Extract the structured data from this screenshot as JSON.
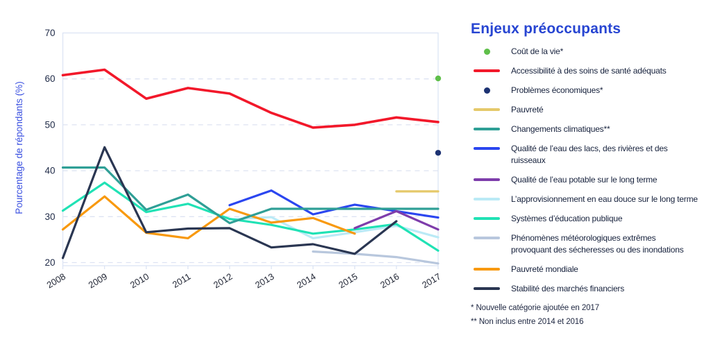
{
  "title": "Enjeux préoccupants",
  "title_color": "#2745d2",
  "footnotes": [
    "* Nouvelle catégorie ajoutée en 2017",
    "** Non inclus entre 2014 et 2016"
  ],
  "legend": {
    "items": [
      {
        "key": "cout-de-la-vie",
        "swatch": "dot",
        "color": "#5fbf4a",
        "label_lines": [
          "Coût de la vie*"
        ]
      },
      {
        "key": "accessibilite-soins-sante",
        "swatch": "line",
        "color": "#f2182a",
        "label_lines": [
          "Accessibilité à des soins de santé adéquats"
        ]
      },
      {
        "key": "problemes-economiques",
        "swatch": "dot",
        "color": "#1c3272",
        "label_lines": [
          "Problèmes économiques*"
        ]
      },
      {
        "key": "pauvrete",
        "swatch": "line",
        "color": "#e5c96a",
        "label_lines": [
          "Pauvreté"
        ]
      },
      {
        "key": "changements-climatiques",
        "swatch": "line",
        "color": "#2f9f96",
        "label_lines": [
          "Changements climatiques**"
        ]
      },
      {
        "key": "qualite-eau-lacs",
        "swatch": "line",
        "color": "#2b46f0",
        "label_lines": [
          "Qualité de l’eau des lacs, des rivières et des",
          "ruisseaux"
        ]
      },
      {
        "key": "qualite-eau-potable",
        "swatch": "line",
        "color": "#7e3dab",
        "label_lines": [
          "Qualité de l’eau potable sur le long terme"
        ]
      },
      {
        "key": "approvisionnement-eau-douce",
        "swatch": "line",
        "color": "#baeaf6",
        "label_lines": [
          "L’approvisionnement en eau douce sur le long terme"
        ]
      },
      {
        "key": "systemes-education",
        "swatch": "line",
        "color": "#20e2b5",
        "label_lines": [
          "Systèmes d’éducation publique"
        ]
      },
      {
        "key": "phenomenes-meteorologiques",
        "swatch": "line",
        "color": "#b8c7dd",
        "label_lines": [
          "Phénomènes météorologiques extrêmes",
          "provoquant des sécheresses ou des inondations"
        ]
      },
      {
        "key": "pauvrete-mondiale",
        "swatch": "line",
        "color": "#f8990f",
        "label_lines": [
          "Pauvreté mondiale"
        ]
      },
      {
        "key": "stabilite-marches-financiers",
        "swatch": "line",
        "color": "#2a3652",
        "label_lines": [
          "Stabilité des marchés financiers"
        ]
      }
    ]
  },
  "chart_data": {
    "type": "line",
    "title": "Enjeux préoccupants",
    "xlabel": "",
    "ylabel": "Pourcentage de répondants (%)",
    "ylabel_color": "#3a50e0",
    "x": [
      2008,
      2009,
      2010,
      2011,
      2012,
      2013,
      2014,
      2015,
      2016,
      2017
    ],
    "y_ticks": [
      70,
      60,
      50,
      40,
      30,
      20
    ],
    "ylim": [
      19.3,
      70
    ],
    "grid": "horizontal-dashed",
    "legend_position": "right",
    "axis_color": "#dce4f4",
    "tick_text_color": "#1f2a47",
    "series": [
      {
        "key": "cout-de-la-vie",
        "name": "Coût de la vie*",
        "color": "#5fbf4a",
        "marker": "dot",
        "points": [
          [
            2017,
            60.1
          ]
        ]
      },
      {
        "key": "accessibilite-soins-sante",
        "name": "Accessibilité à des soins de santé adéquats",
        "color": "#f2182a",
        "marker": "line",
        "width": 3.6,
        "points": [
          [
            2008,
            60.8
          ],
          [
            2009,
            62.0
          ],
          [
            2010,
            55.7
          ],
          [
            2011,
            58.0
          ],
          [
            2012,
            56.8
          ],
          [
            2013,
            52.6
          ],
          [
            2014,
            49.4
          ],
          [
            2015,
            50.0
          ],
          [
            2016,
            51.6
          ],
          [
            2017,
            50.6
          ]
        ]
      },
      {
        "key": "problemes-economiques",
        "name": "Problèmes économiques*",
        "color": "#1c3272",
        "marker": "dot",
        "points": [
          [
            2017,
            43.9
          ]
        ]
      },
      {
        "key": "pauvrete",
        "name": "Pauvreté",
        "color": "#e5c96a",
        "marker": "line",
        "points": [
          [
            2016,
            35.5
          ],
          [
            2017,
            35.5
          ]
        ]
      },
      {
        "key": "changements-climatiques",
        "name": "Changements climatiques**",
        "color": "#2f9f96",
        "marker": "line",
        "points": [
          [
            2008,
            40.7
          ],
          [
            2009,
            40.7
          ],
          [
            2010,
            31.5
          ],
          [
            2011,
            34.8
          ],
          [
            2012,
            28.6
          ],
          [
            2013,
            31.7
          ],
          [
            2017,
            31.7
          ]
        ]
      },
      {
        "key": "qualite-eau-lacs",
        "name": "Qualité de l’eau des lacs, des rivières et des ruisseaux",
        "color": "#2b46f0",
        "marker": "line",
        "points": [
          [
            2012,
            32.5
          ],
          [
            2013,
            35.7
          ],
          [
            2014,
            30.5
          ],
          [
            2015,
            32.6
          ],
          [
            2016,
            31.2
          ],
          [
            2017,
            29.8
          ]
        ]
      },
      {
        "key": "qualite-eau-potable",
        "name": "Qualité de l’eau potable sur le long terme",
        "color": "#7e3dab",
        "marker": "line",
        "points": [
          [
            2015,
            27.5
          ],
          [
            2016,
            31.2
          ],
          [
            2017,
            27.2
          ]
        ]
      },
      {
        "key": "approvisionnement-eau-douce",
        "name": "L’approvisionnement en eau douce sur le long terme",
        "color": "#baeaf6",
        "marker": "line",
        "points": [
          [
            2012,
            29.4
          ],
          [
            2013,
            29.9
          ],
          [
            2014,
            25.3
          ],
          [
            2015,
            26.6
          ],
          [
            2016,
            28.0
          ],
          [
            2017,
            25.5
          ]
        ]
      },
      {
        "key": "systemes-education",
        "name": "Systèmes d’éducation publique",
        "color": "#20e2b5",
        "marker": "line",
        "points": [
          [
            2008,
            31.3
          ],
          [
            2009,
            37.4
          ],
          [
            2010,
            31.0
          ],
          [
            2011,
            32.8
          ],
          [
            2012,
            29.5
          ],
          [
            2013,
            28.2
          ],
          [
            2014,
            26.3
          ],
          [
            2015,
            27.2
          ],
          [
            2016,
            28.4
          ],
          [
            2017,
            22.6
          ]
        ]
      },
      {
        "key": "phenomenes-meteorologiques",
        "name": "Phénomènes météorologiques extrêmes provoquant des sécheresses ou des inondations",
        "color": "#b8c7dd",
        "marker": "line",
        "points": [
          [
            2014,
            22.4
          ],
          [
            2015,
            21.9
          ],
          [
            2016,
            21.2
          ],
          [
            2017,
            19.8
          ]
        ]
      },
      {
        "key": "pauvrete-mondiale",
        "name": "Pauvreté mondiale",
        "color": "#f8990f",
        "marker": "line",
        "points": [
          [
            2008,
            27.2
          ],
          [
            2009,
            34.4
          ],
          [
            2010,
            26.5
          ],
          [
            2011,
            25.3
          ],
          [
            2012,
            31.7
          ],
          [
            2013,
            28.7
          ],
          [
            2014,
            29.7
          ],
          [
            2015,
            26.3
          ]
        ]
      },
      {
        "key": "stabilite-marches-financiers",
        "name": "Stabilité des marchés financiers",
        "color": "#2a3652",
        "marker": "line",
        "points": [
          [
            2008,
            21.0
          ],
          [
            2009,
            45.1
          ],
          [
            2010,
            26.6
          ],
          [
            2011,
            27.4
          ],
          [
            2012,
            27.5
          ],
          [
            2013,
            23.3
          ],
          [
            2014,
            24.0
          ],
          [
            2015,
            21.9
          ],
          [
            2016,
            29.0
          ]
        ]
      }
    ],
    "draw_order": [
      "phenomenes-meteorologiques",
      "approvisionnement-eau-douce",
      "systemes-education",
      "pauvrete-mondiale",
      "qualite-eau-lacs",
      "changements-climatiques",
      "stabilite-marches-financiers",
      "qualite-eau-potable",
      "pauvrete",
      "accessibilite-soins-sante",
      "cout-de-la-vie",
      "problemes-economiques"
    ]
  }
}
